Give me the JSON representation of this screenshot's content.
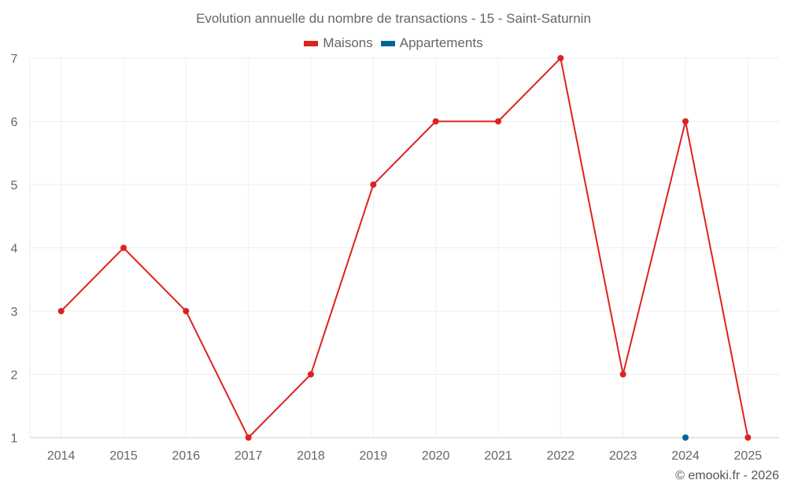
{
  "chart_data": {
    "type": "line",
    "title": "Evolution annuelle du nombre de transactions - 15 - Saint-Saturnin",
    "categories": [
      "2014",
      "2015",
      "2016",
      "2017",
      "2018",
      "2019",
      "2020",
      "2021",
      "2022",
      "2023",
      "2024",
      "2025"
    ],
    "series": [
      {
        "name": "Maisons",
        "color": "#dd2222",
        "values": [
          3,
          4,
          3,
          1,
          2,
          5,
          6,
          6,
          7,
          2,
          6,
          1
        ]
      },
      {
        "name": "Appartements",
        "color": "#006699",
        "values": [
          null,
          null,
          null,
          null,
          null,
          null,
          null,
          null,
          null,
          null,
          1,
          null
        ]
      }
    ],
    "yticks": [
      1,
      2,
      3,
      4,
      5,
      6,
      7
    ],
    "ylim": [
      1,
      7
    ],
    "xlabel": "",
    "ylabel": "",
    "grid": true,
    "legend": "top-center"
  },
  "credit": "© emooki.fr - 2026"
}
